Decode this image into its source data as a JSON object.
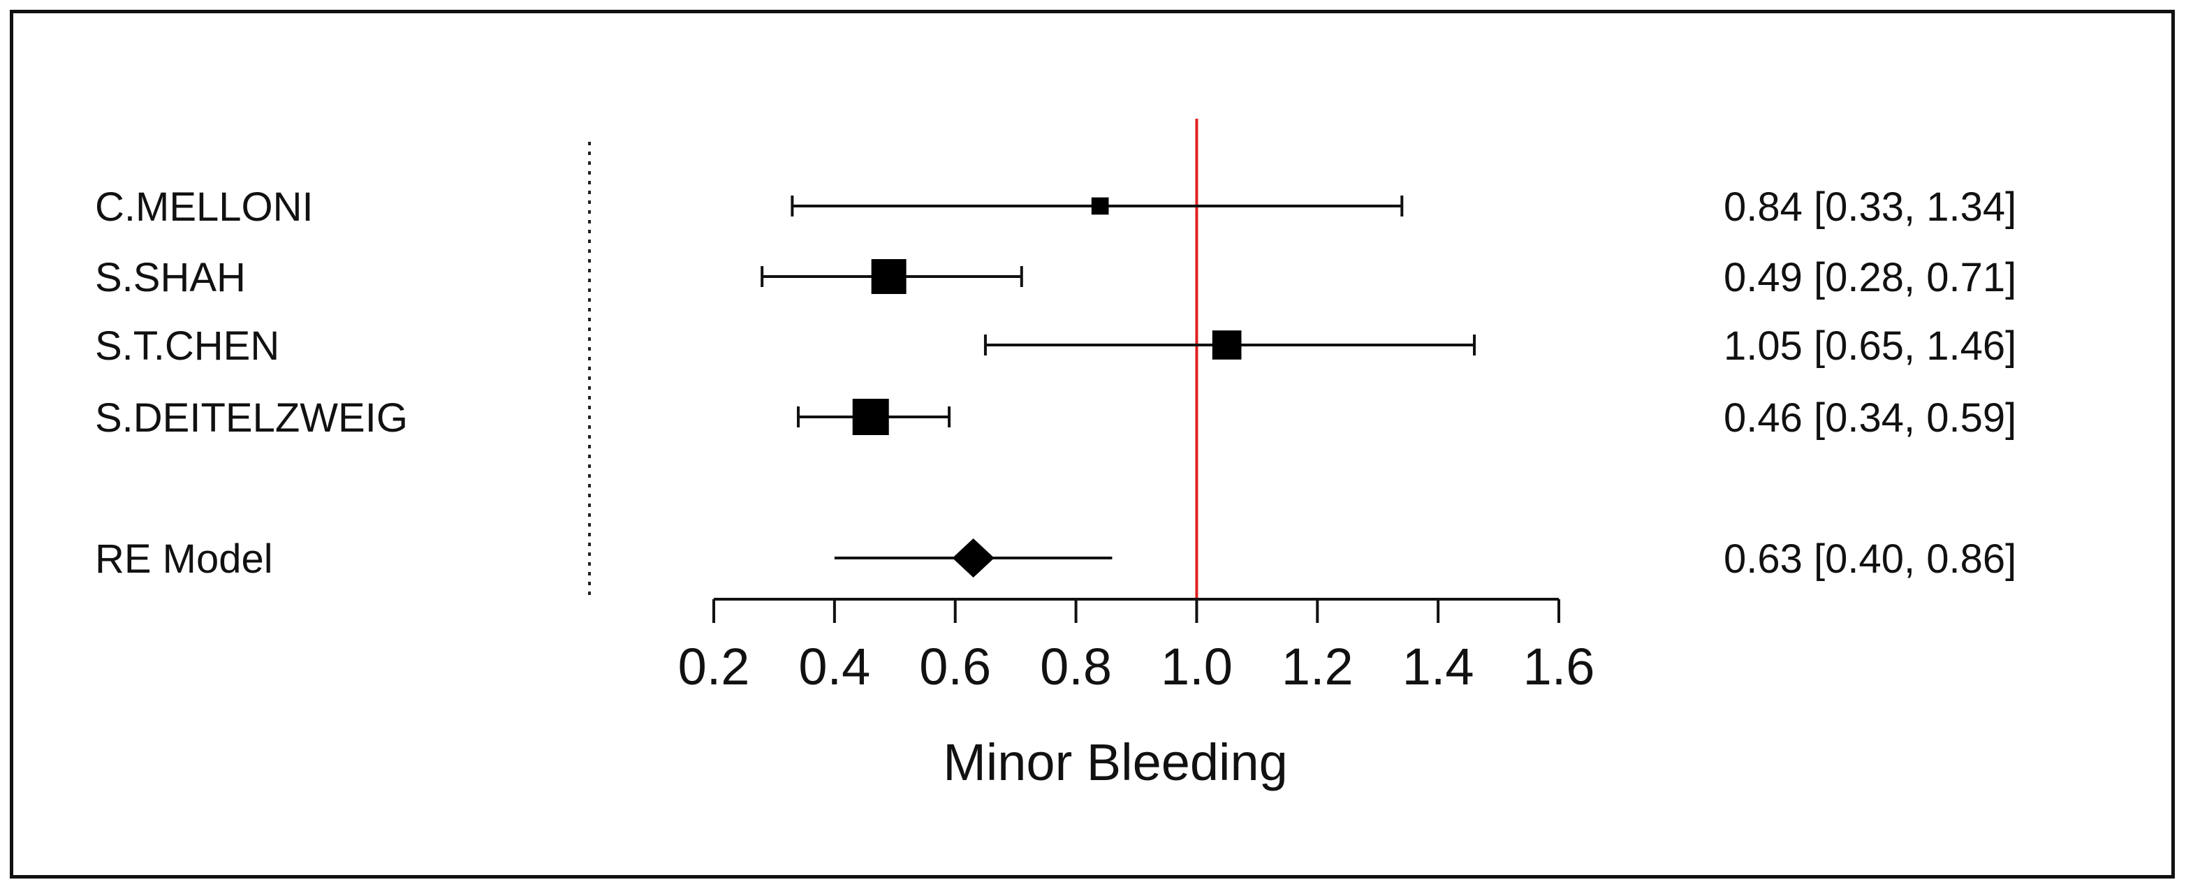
{
  "chart_data": {
    "type": "forest",
    "title": "",
    "xlabel": "Minor Bleeding",
    "ylabel": "",
    "xlim": [
      0.2,
      1.6
    ],
    "ticks": [
      {
        "value": 0.2,
        "label": "0.2"
      },
      {
        "value": 0.4,
        "label": "0.4"
      },
      {
        "value": 0.6,
        "label": "0.6"
      },
      {
        "value": 0.8,
        "label": "0.8"
      },
      {
        "value": 1.0,
        "label": "1.0"
      },
      {
        "value": 1.2,
        "label": "1.2"
      },
      {
        "value": 1.4,
        "label": "1.4"
      },
      {
        "value": 1.6,
        "label": "1.6"
      }
    ],
    "reference_line": {
      "value": 1.0,
      "color": "#e02020"
    },
    "studies": [
      {
        "name": "C.MELLONI",
        "estimate": 0.84,
        "lower": 0.33,
        "upper": 1.34,
        "weight": 0.1,
        "label": "0.84 [0.33, 1.34]"
      },
      {
        "name": "S.SHAH",
        "estimate": 0.49,
        "lower": 0.28,
        "upper": 0.71,
        "weight": 0.9,
        "label": "0.49 [0.28, 0.71]"
      },
      {
        "name": "S.T.CHEN",
        "estimate": 1.05,
        "lower": 0.65,
        "upper": 1.46,
        "weight": 0.55,
        "label": "1.05 [0.65, 1.46]"
      },
      {
        "name": "S.DEITELZWEIG",
        "estimate": 0.46,
        "lower": 0.34,
        "upper": 0.59,
        "weight": 1.0,
        "label": "0.46 [0.34, 0.59]"
      }
    ],
    "summary": {
      "name": "RE Model",
      "estimate": 0.63,
      "lower": 0.4,
      "upper": 0.86,
      "label": "0.63 [0.40, 0.86]"
    }
  }
}
